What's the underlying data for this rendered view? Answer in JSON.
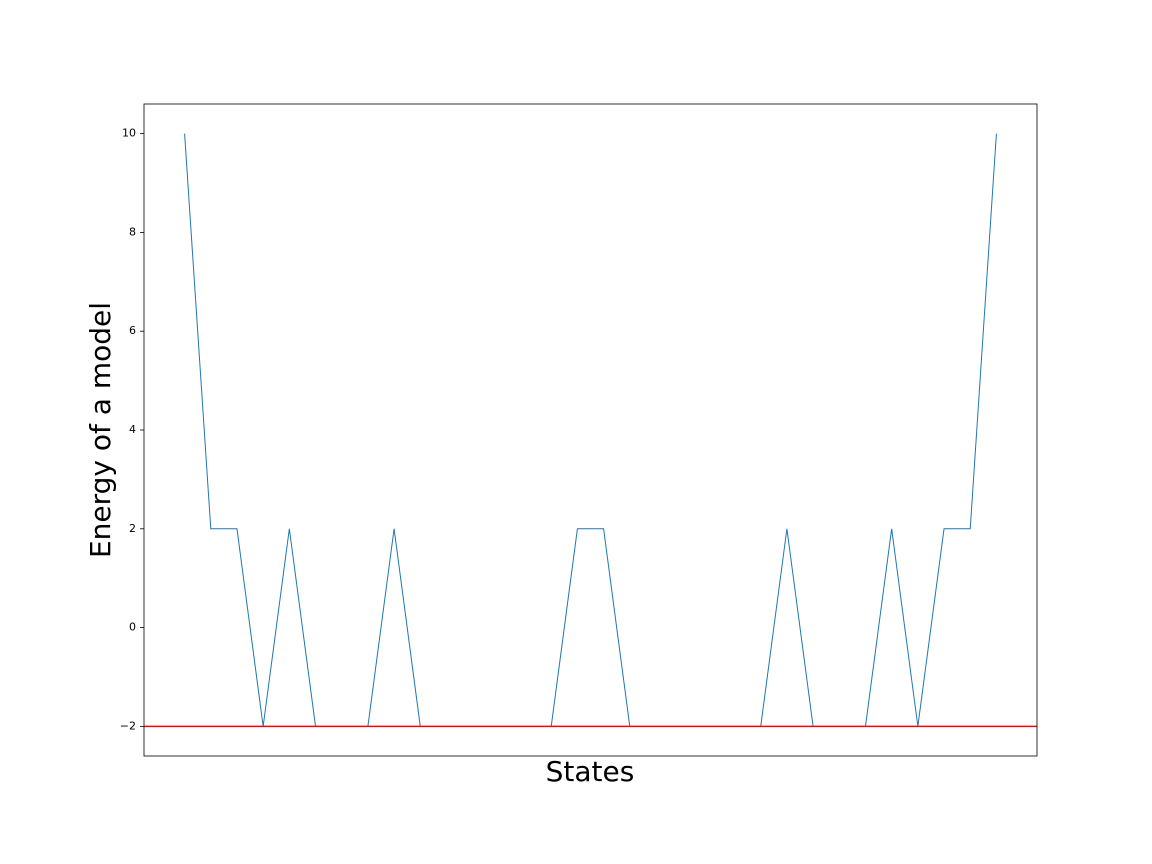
{
  "chart_data": {
    "type": "line",
    "xlabel": "States",
    "ylabel": "Energy of a model",
    "series": [
      {
        "color": "#1f77b4",
        "values": [
          10,
          2,
          2,
          -2,
          2,
          -2,
          -2,
          -2,
          2,
          -2,
          -2,
          -2,
          -2,
          -2,
          -2,
          2,
          2,
          -2,
          -2,
          -2,
          -2,
          -2,
          -2,
          2,
          -2,
          -2,
          -2,
          2,
          -2,
          2,
          2,
          10
        ]
      }
    ],
    "hline": {
      "value": -2,
      "color": "#ff0000"
    },
    "xlim": [
      -1.55,
      32.55
    ],
    "ylim": [
      -2.6,
      10.6
    ],
    "yticks": [
      {
        "value": -2,
        "label": "−2"
      },
      0,
      2,
      4,
      6,
      8,
      10
    ]
  }
}
